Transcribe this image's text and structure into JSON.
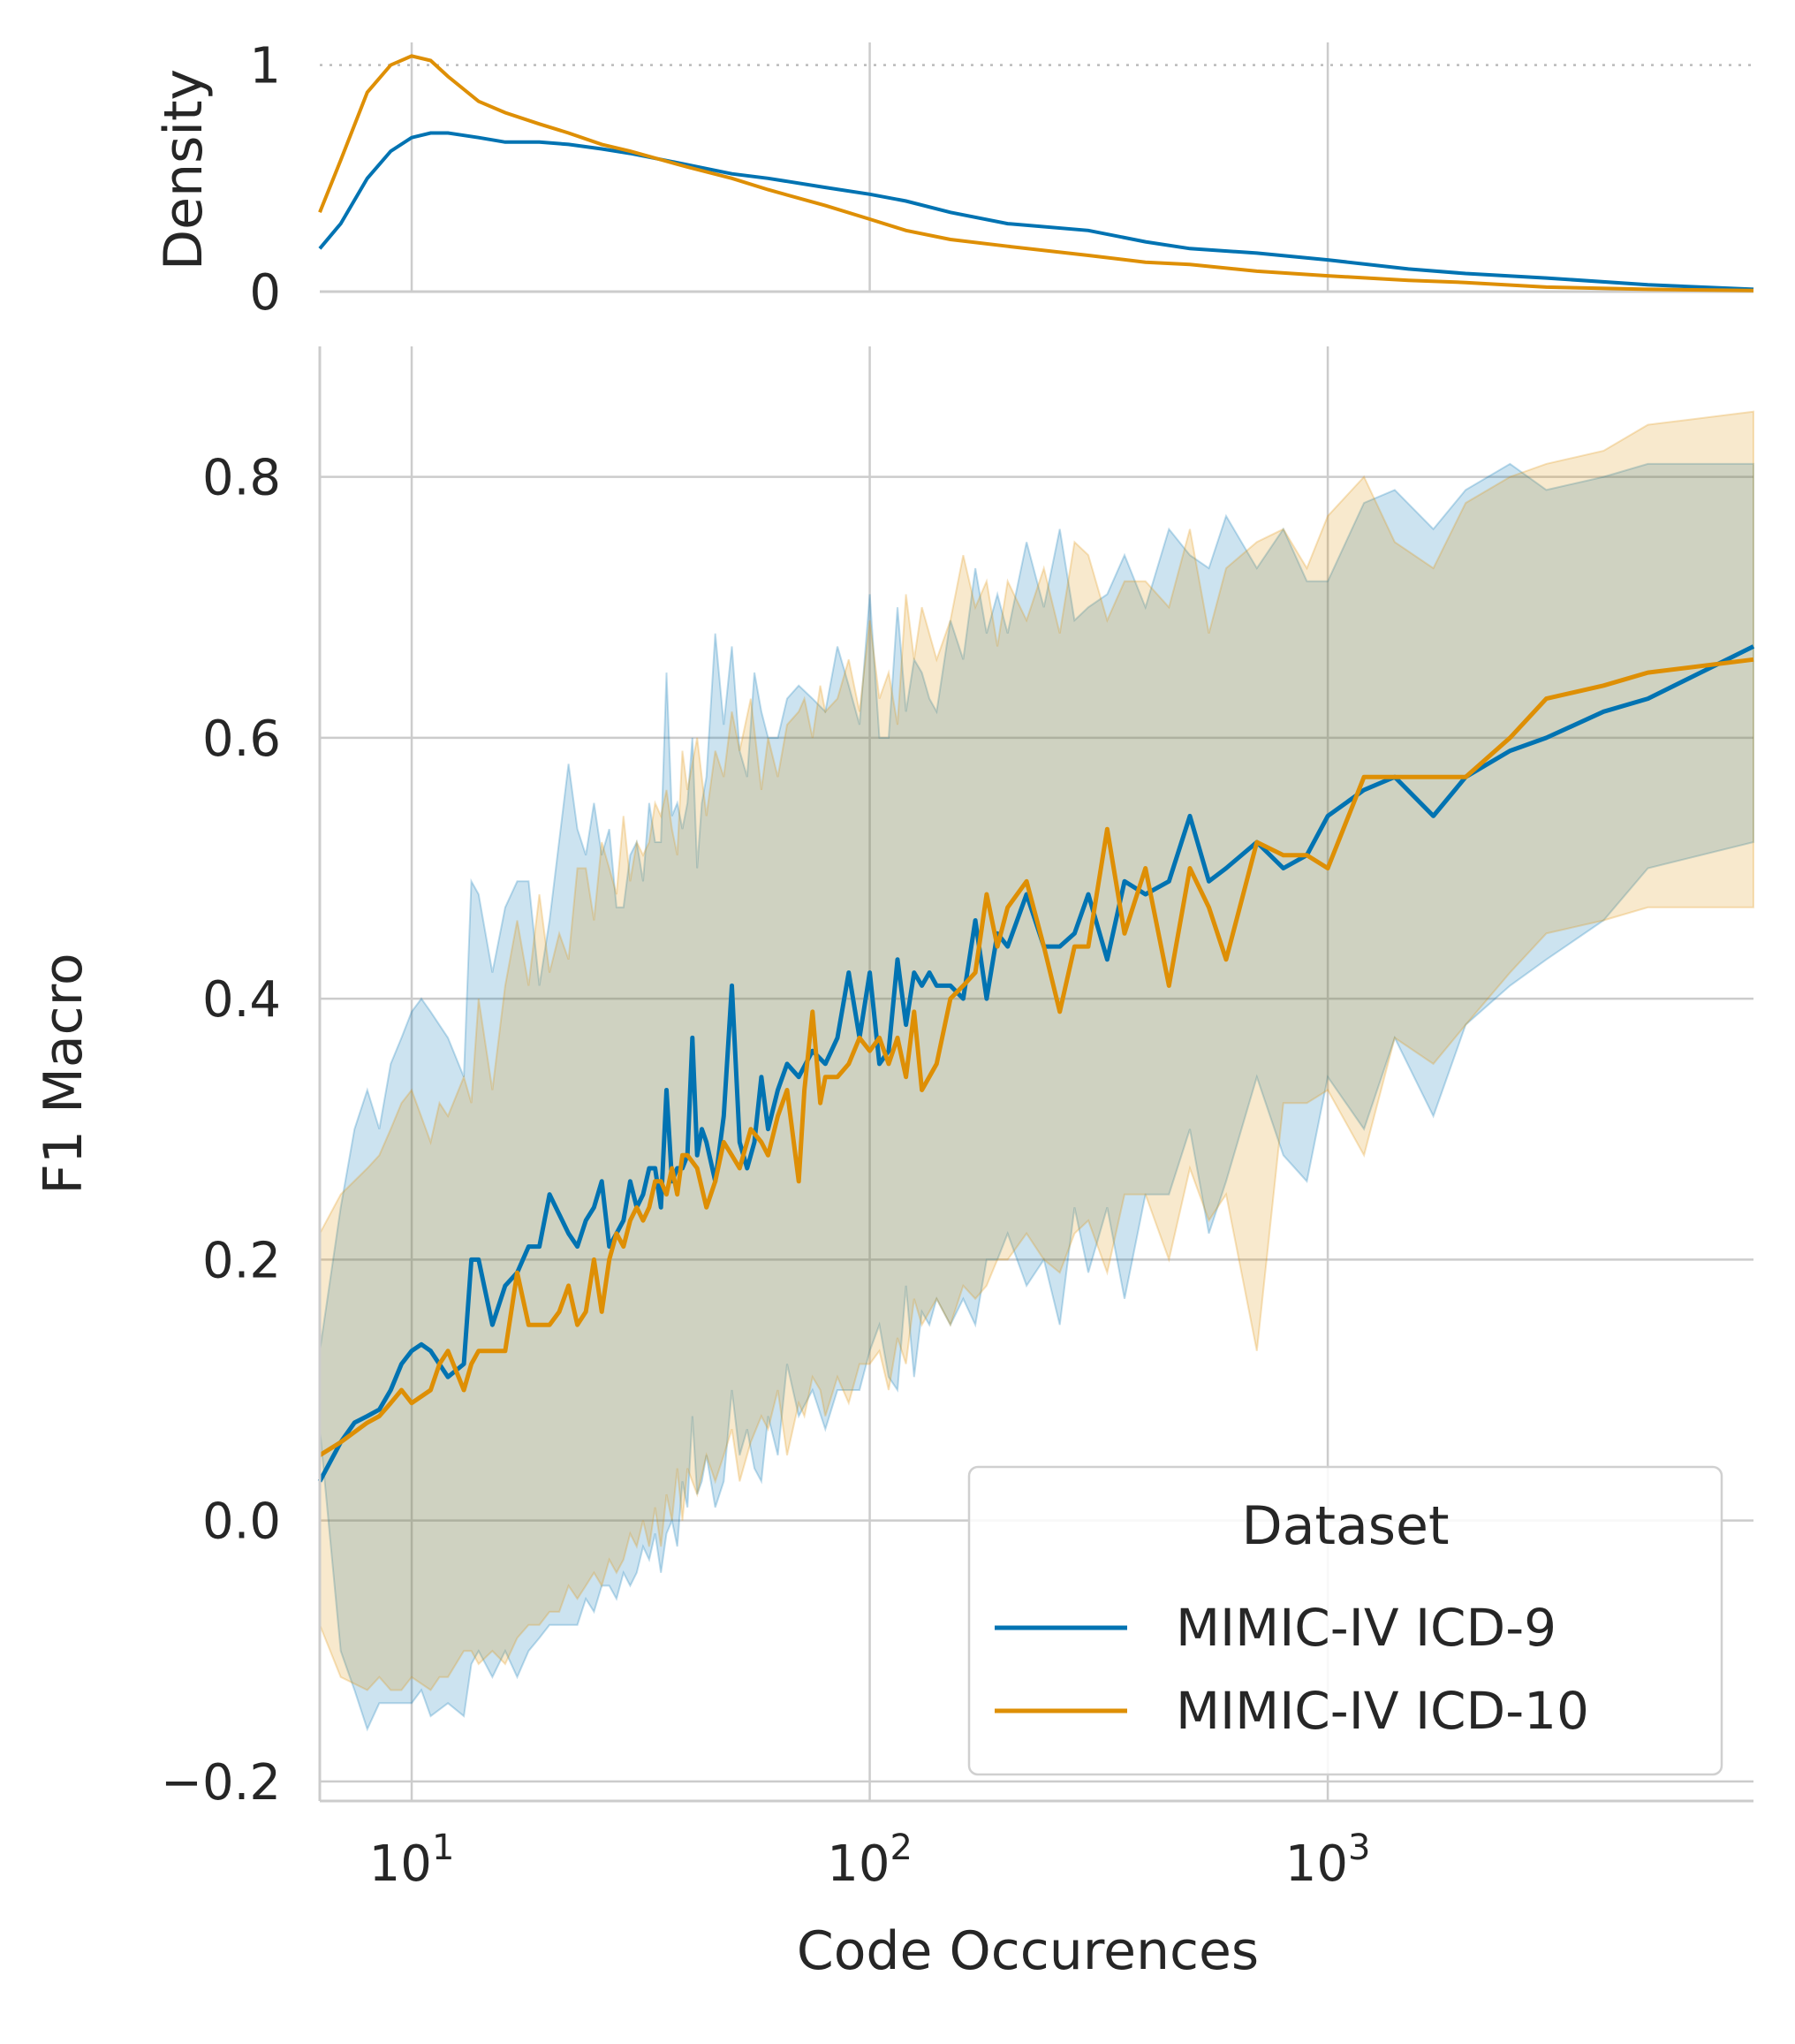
{
  "chart_data": [
    {
      "type": "line",
      "panel": "density",
      "ylabel": "Density",
      "xscale": "log",
      "xlim": [
        6.3,
        8500
      ],
      "ylim": [
        0,
        1.1
      ],
      "yticks": [
        {
          "v": 0,
          "label": "0"
        },
        {
          "v": 1,
          "label": "1"
        }
      ],
      "grid": true,
      "reference_line": {
        "y": 1,
        "style": "dotted"
      },
      "series": [
        {
          "name": "MIMIC-IV ICD-9",
          "color": "#0173b2",
          "x": [
            6.3,
            7,
            8,
            9,
            10,
            11,
            12,
            14,
            16,
            19,
            22,
            26,
            30,
            40,
            50,
            60,
            80,
            100,
            120,
            150,
            200,
            300,
            400,
            500,
            700,
            1000,
            1500,
            2000,
            3000,
            5000,
            8500
          ],
          "y": [
            0.19,
            0.3,
            0.5,
            0.62,
            0.68,
            0.7,
            0.7,
            0.68,
            0.66,
            0.66,
            0.65,
            0.63,
            0.61,
            0.56,
            0.52,
            0.5,
            0.46,
            0.43,
            0.4,
            0.35,
            0.3,
            0.27,
            0.22,
            0.19,
            0.17,
            0.14,
            0.1,
            0.08,
            0.06,
            0.03,
            0.01
          ]
        },
        {
          "name": "MIMIC-IV ICD-10",
          "color": "#de8f05",
          "x": [
            6.3,
            7,
            8,
            9,
            10,
            11,
            12,
            14,
            16,
            19,
            22,
            26,
            30,
            40,
            50,
            60,
            80,
            100,
            120,
            150,
            200,
            300,
            400,
            500,
            700,
            1000,
            1500,
            2000,
            3000,
            5000,
            8500
          ],
          "y": [
            0.35,
            0.58,
            0.88,
            1.0,
            1.04,
            1.02,
            0.95,
            0.84,
            0.79,
            0.74,
            0.7,
            0.65,
            0.62,
            0.55,
            0.5,
            0.45,
            0.38,
            0.32,
            0.27,
            0.23,
            0.2,
            0.16,
            0.13,
            0.12,
            0.09,
            0.07,
            0.05,
            0.04,
            0.02,
            0.01,
            0.005
          ]
        }
      ]
    },
    {
      "type": "line",
      "panel": "main",
      "xlabel": "Code Occurences",
      "ylabel": "F1 Macro",
      "xscale": "log",
      "xlim": [
        6.3,
        8500
      ],
      "ylim": [
        -0.215,
        0.9
      ],
      "xticks": [
        {
          "v": 10,
          "base": "10",
          "exp": "1"
        },
        {
          "v": 100,
          "base": "10",
          "exp": "2"
        },
        {
          "v": 1000,
          "base": "10",
          "exp": "3"
        }
      ],
      "yticks": [
        {
          "v": -0.2,
          "label": "−0.2"
        },
        {
          "v": 0.0,
          "label": "0.0"
        },
        {
          "v": 0.2,
          "label": "0.2"
        },
        {
          "v": 0.4,
          "label": "0.4"
        },
        {
          "v": 0.6,
          "label": "0.6"
        },
        {
          "v": 0.8,
          "label": "0.8"
        }
      ],
      "grid": true,
      "legend": {
        "title": "Dataset",
        "position": "lower-right"
      },
      "series": [
        {
          "name": "MIMIC-IV ICD-9",
          "color": "#0173b2",
          "x": [
            6.3,
            7,
            7.5,
            8,
            8.5,
            9,
            9.5,
            10,
            10.5,
            11,
            12,
            13,
            13.5,
            14,
            15,
            16,
            17,
            18,
            19,
            20,
            22,
            23,
            24,
            25,
            26,
            27,
            28,
            29,
            30,
            31,
            32,
            33,
            34,
            35,
            36,
            37,
            38,
            39,
            40,
            41,
            42,
            43,
            44,
            46,
            48,
            50,
            52,
            54,
            56,
            58,
            60,
            63,
            66,
            70,
            75,
            80,
            85,
            90,
            95,
            100,
            105,
            110,
            115,
            120,
            125,
            130,
            135,
            140,
            150,
            160,
            170,
            180,
            190,
            200,
            220,
            240,
            260,
            280,
            300,
            330,
            360,
            400,
            450,
            500,
            550,
            600,
            700,
            800,
            900,
            1000,
            1200,
            1400,
            1700,
            2000,
            2500,
            3000,
            4000,
            5000,
            8500
          ],
          "y": [
            0.03,
            0.06,
            0.075,
            0.08,
            0.085,
            0.1,
            0.12,
            0.13,
            0.135,
            0.13,
            0.11,
            0.12,
            0.2,
            0.2,
            0.15,
            0.18,
            0.19,
            0.21,
            0.21,
            0.25,
            0.22,
            0.21,
            0.23,
            0.24,
            0.26,
            0.21,
            0.22,
            0.23,
            0.26,
            0.24,
            0.25,
            0.27,
            0.27,
            0.24,
            0.33,
            0.26,
            0.27,
            0.27,
            0.28,
            0.37,
            0.28,
            0.3,
            0.29,
            0.26,
            0.31,
            0.41,
            0.29,
            0.27,
            0.29,
            0.34,
            0.3,
            0.33,
            0.35,
            0.34,
            0.36,
            0.35,
            0.37,
            0.42,
            0.37,
            0.42,
            0.35,
            0.36,
            0.43,
            0.38,
            0.42,
            0.41,
            0.42,
            0.41,
            0.41,
            0.4,
            0.46,
            0.4,
            0.45,
            0.44,
            0.48,
            0.44,
            0.44,
            0.45,
            0.48,
            0.43,
            0.49,
            0.48,
            0.49,
            0.54,
            0.49,
            0.5,
            0.52,
            0.5,
            0.51,
            0.54,
            0.56,
            0.57,
            0.54,
            0.57,
            0.59,
            0.6,
            0.62,
            0.63,
            0.67
          ],
          "lower": [
            0.07,
            -0.1,
            -0.13,
            -0.16,
            -0.14,
            -0.14,
            -0.14,
            -0.14,
            -0.13,
            -0.15,
            -0.14,
            -0.15,
            -0.11,
            -0.1,
            -0.12,
            -0.1,
            -0.12,
            -0.1,
            -0.09,
            -0.08,
            -0.08,
            -0.08,
            -0.06,
            -0.07,
            -0.05,
            -0.05,
            -0.06,
            -0.04,
            -0.05,
            -0.04,
            -0.02,
            -0.03,
            -0.01,
            -0.04,
            -0.01,
            0.0,
            -0.02,
            0.03,
            0.01,
            0.08,
            0.02,
            0.03,
            0.05,
            0.01,
            0.03,
            0.1,
            0.05,
            0.07,
            0.04,
            0.03,
            0.08,
            0.05,
            0.12,
            0.08,
            0.1,
            0.07,
            0.1,
            0.1,
            0.1,
            0.13,
            0.15,
            0.11,
            0.1,
            0.18,
            0.11,
            0.16,
            0.15,
            0.17,
            0.15,
            0.17,
            0.15,
            0.2,
            0.2,
            0.22,
            0.18,
            0.2,
            0.15,
            0.24,
            0.19,
            0.24,
            0.17,
            0.25,
            0.25,
            0.3,
            0.22,
            0.26,
            0.34,
            0.28,
            0.26,
            0.34,
            0.3,
            0.37,
            0.31,
            0.38,
            0.41,
            0.43,
            0.46,
            0.5,
            0.52
          ],
          "upper": [
            0.13,
            0.24,
            0.3,
            0.33,
            0.3,
            0.35,
            0.37,
            0.39,
            0.4,
            0.39,
            0.37,
            0.34,
            0.49,
            0.48,
            0.42,
            0.47,
            0.49,
            0.49,
            0.41,
            0.46,
            0.58,
            0.53,
            0.51,
            0.55,
            0.51,
            0.53,
            0.47,
            0.47,
            0.51,
            0.52,
            0.49,
            0.55,
            0.52,
            0.52,
            0.65,
            0.54,
            0.55,
            0.53,
            0.55,
            0.6,
            0.5,
            0.55,
            0.57,
            0.68,
            0.61,
            0.67,
            0.59,
            0.57,
            0.65,
            0.62,
            0.6,
            0.6,
            0.63,
            0.64,
            0.63,
            0.62,
            0.67,
            0.64,
            0.61,
            0.71,
            0.6,
            0.6,
            0.7,
            0.62,
            0.66,
            0.65,
            0.63,
            0.62,
            0.69,
            0.66,
            0.73,
            0.68,
            0.71,
            0.68,
            0.75,
            0.7,
            0.76,
            0.69,
            0.7,
            0.71,
            0.74,
            0.7,
            0.76,
            0.74,
            0.73,
            0.77,
            0.73,
            0.76,
            0.72,
            0.72,
            0.78,
            0.79,
            0.76,
            0.79,
            0.81,
            0.79,
            0.8,
            0.81,
            0.81
          ]
        },
        {
          "name": "MIMIC-IV ICD-10",
          "color": "#de8f05",
          "x": [
            6.3,
            7,
            8,
            8.5,
            9,
            9.5,
            10,
            11,
            11.5,
            12,
            13,
            13.5,
            14,
            15,
            16,
            17,
            18,
            19,
            20,
            21,
            22,
            23,
            24,
            25,
            26,
            27,
            28,
            29,
            30,
            31,
            32,
            33,
            34,
            35,
            36,
            37,
            38,
            39,
            40,
            42,
            44,
            46,
            48,
            50,
            52,
            55,
            58,
            60,
            63,
            66,
            70,
            72,
            75,
            78,
            80,
            85,
            90,
            95,
            100,
            105,
            110,
            115,
            120,
            125,
            130,
            140,
            150,
            160,
            170,
            180,
            190,
            200,
            220,
            240,
            260,
            280,
            300,
            330,
            360,
            400,
            450,
            500,
            550,
            600,
            700,
            800,
            900,
            1000,
            1200,
            1400,
            1700,
            2000,
            2500,
            3000,
            4000,
            5000,
            8500
          ],
          "y": [
            0.05,
            0.06,
            0.075,
            0.08,
            0.09,
            0.1,
            0.09,
            0.1,
            0.12,
            0.13,
            0.1,
            0.12,
            0.13,
            0.13,
            0.13,
            0.19,
            0.15,
            0.15,
            0.15,
            0.16,
            0.18,
            0.15,
            0.16,
            0.2,
            0.16,
            0.2,
            0.22,
            0.21,
            0.23,
            0.24,
            0.23,
            0.24,
            0.26,
            0.26,
            0.25,
            0.27,
            0.25,
            0.28,
            0.28,
            0.27,
            0.24,
            0.26,
            0.29,
            0.28,
            0.27,
            0.3,
            0.29,
            0.28,
            0.31,
            0.33,
            0.26,
            0.33,
            0.39,
            0.32,
            0.34,
            0.34,
            0.35,
            0.37,
            0.36,
            0.37,
            0.35,
            0.37,
            0.34,
            0.39,
            0.33,
            0.35,
            0.4,
            0.41,
            0.42,
            0.48,
            0.44,
            0.47,
            0.49,
            0.44,
            0.39,
            0.44,
            0.44,
            0.53,
            0.45,
            0.5,
            0.41,
            0.5,
            0.47,
            0.43,
            0.52,
            0.51,
            0.51,
            0.5,
            0.57,
            0.57,
            0.57,
            0.57,
            0.6,
            0.63,
            0.64,
            0.65,
            0.66
          ],
          "lower": [
            -0.08,
            -0.12,
            -0.13,
            -0.12,
            -0.13,
            -0.13,
            -0.12,
            -0.13,
            -0.12,
            -0.12,
            -0.1,
            -0.1,
            -0.11,
            -0.1,
            -0.11,
            -0.09,
            -0.08,
            -0.08,
            -0.07,
            -0.07,
            -0.05,
            -0.06,
            -0.05,
            -0.04,
            -0.05,
            -0.03,
            -0.04,
            -0.03,
            -0.01,
            -0.02,
            0.0,
            -0.02,
            0.01,
            -0.02,
            0.02,
            0.0,
            0.04,
            0.0,
            0.04,
            0.02,
            0.05,
            0.03,
            0.05,
            0.07,
            0.03,
            0.06,
            0.08,
            0.07,
            0.1,
            0.05,
            0.09,
            0.08,
            0.11,
            0.1,
            0.08,
            0.11,
            0.09,
            0.12,
            0.12,
            0.13,
            0.1,
            0.14,
            0.12,
            0.17,
            0.15,
            0.17,
            0.15,
            0.18,
            0.17,
            0.18,
            0.2,
            0.2,
            0.22,
            0.2,
            0.19,
            0.22,
            0.23,
            0.19,
            0.25,
            0.25,
            0.2,
            0.27,
            0.23,
            0.25,
            0.13,
            0.32,
            0.32,
            0.33,
            0.28,
            0.37,
            0.35,
            0.38,
            0.42,
            0.45,
            0.46,
            0.47,
            0.47
          ],
          "upper": [
            0.22,
            0.25,
            0.27,
            0.28,
            0.3,
            0.32,
            0.33,
            0.29,
            0.32,
            0.31,
            0.34,
            0.32,
            0.4,
            0.33,
            0.41,
            0.46,
            0.41,
            0.48,
            0.42,
            0.45,
            0.43,
            0.5,
            0.5,
            0.46,
            0.52,
            0.5,
            0.48,
            0.54,
            0.49,
            0.52,
            0.51,
            0.52,
            0.55,
            0.54,
            0.56,
            0.53,
            0.51,
            0.59,
            0.56,
            0.6,
            0.54,
            0.59,
            0.57,
            0.62,
            0.59,
            0.63,
            0.56,
            0.6,
            0.57,
            0.61,
            0.62,
            0.63,
            0.6,
            0.64,
            0.62,
            0.63,
            0.66,
            0.62,
            0.69,
            0.63,
            0.65,
            0.61,
            0.71,
            0.66,
            0.7,
            0.66,
            0.69,
            0.74,
            0.7,
            0.72,
            0.67,
            0.72,
            0.69,
            0.73,
            0.68,
            0.75,
            0.74,
            0.69,
            0.72,
            0.72,
            0.7,
            0.76,
            0.68,
            0.73,
            0.75,
            0.76,
            0.73,
            0.77,
            0.8,
            0.75,
            0.73,
            0.78,
            0.8,
            0.81,
            0.82,
            0.84,
            0.85
          ]
        }
      ]
    }
  ]
}
